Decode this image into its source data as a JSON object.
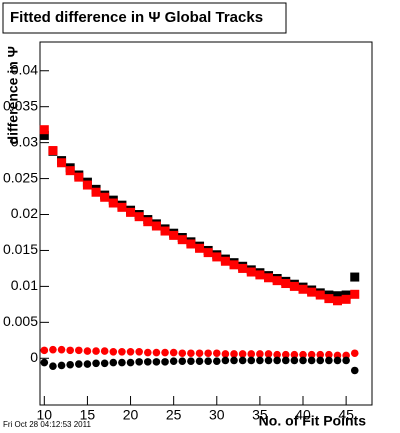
{
  "chart_data": {
    "type": "scatter",
    "title": "Fitted difference in  Ψ  Global Tracks",
    "x_label": "No. of Fit Points",
    "y_label": "difference in Ψ",
    "timestamp": "Fri Oct 28 04:12:53 2011",
    "x": [
      10,
      11,
      12,
      13,
      14,
      15,
      16,
      17,
      18,
      19,
      20,
      21,
      22,
      23,
      24,
      25,
      26,
      27,
      28,
      29,
      30,
      31,
      32,
      33,
      34,
      35,
      36,
      37,
      38,
      39,
      40,
      41,
      42,
      43,
      44,
      45,
      46
    ],
    "xlim": [
      9.5,
      48
    ],
    "xticks": [
      10,
      15,
      20,
      25,
      30,
      35,
      40,
      45
    ],
    "ylim": [
      -0.0065,
      0.044
    ],
    "yticks": [
      0,
      0.005,
      0.01,
      0.015,
      0.02,
      0.025,
      0.03,
      0.035,
      0.04
    ],
    "series": [
      {
        "name": "black-upper",
        "color": "#000000",
        "marker": "square",
        "values": [
          0.031,
          0.0288,
          0.0275,
          0.0265,
          0.0255,
          0.0245,
          0.0235,
          0.0227,
          0.022,
          0.0213,
          0.0206,
          0.02,
          0.0193,
          0.0187,
          0.018,
          0.0174,
          0.0168,
          0.0162,
          0.0156,
          0.015,
          0.0144,
          0.0138,
          0.0133,
          0.0128,
          0.0123,
          0.0119,
          0.0115,
          0.0111,
          0.0107,
          0.0103,
          0.0099,
          0.0095,
          0.0091,
          0.0088,
          0.0087,
          0.0088,
          0.0113
        ]
      },
      {
        "name": "red-upper",
        "color": "#ff0000",
        "marker": "square",
        "values": [
          0.0318,
          0.0289,
          0.0272,
          0.0261,
          0.0252,
          0.0241,
          0.0231,
          0.0224,
          0.0216,
          0.021,
          0.0203,
          0.0197,
          0.019,
          0.0184,
          0.0177,
          0.0171,
          0.0165,
          0.0159,
          0.0153,
          0.0147,
          0.0141,
          0.0135,
          0.013,
          0.0125,
          0.012,
          0.0116,
          0.0112,
          0.0108,
          0.0104,
          0.01,
          0.0096,
          0.0092,
          0.0088,
          0.0083,
          0.008,
          0.0082,
          0.0089
        ]
      },
      {
        "name": "red-lower",
        "color": "#ff0000",
        "marker": "circle",
        "values": [
          0.0011,
          0.0012,
          0.0012,
          0.0011,
          0.0011,
          0.001,
          0.001,
          0.001,
          0.0009,
          0.0009,
          0.0009,
          0.0009,
          0.0008,
          0.0008,
          0.0008,
          0.0008,
          0.0007,
          0.0007,
          0.0007,
          0.0007,
          0.0007,
          0.0006,
          0.0006,
          0.0006,
          0.0006,
          0.0006,
          0.0006,
          0.0005,
          0.0005,
          0.0005,
          0.0005,
          0.0005,
          0.0005,
          0.0005,
          0.0004,
          0.0004,
          0.0007
        ]
      },
      {
        "name": "black-lower",
        "color": "#000000",
        "marker": "circle",
        "values": [
          -0.0006,
          -0.0011,
          -0.001,
          -0.0009,
          -0.0008,
          -0.0008,
          -0.0007,
          -0.0007,
          -0.0006,
          -0.0006,
          -0.0006,
          -0.0005,
          -0.0005,
          -0.0005,
          -0.0005,
          -0.0004,
          -0.0004,
          -0.0004,
          -0.0004,
          -0.0004,
          -0.0004,
          -0.0003,
          -0.0003,
          -0.0003,
          -0.0003,
          -0.0003,
          -0.0003,
          -0.0003,
          -0.0003,
          -0.0003,
          -0.0003,
          -0.0003,
          -0.0003,
          -0.0003,
          -0.0003,
          -0.0003,
          -0.0017
        ]
      }
    ]
  }
}
